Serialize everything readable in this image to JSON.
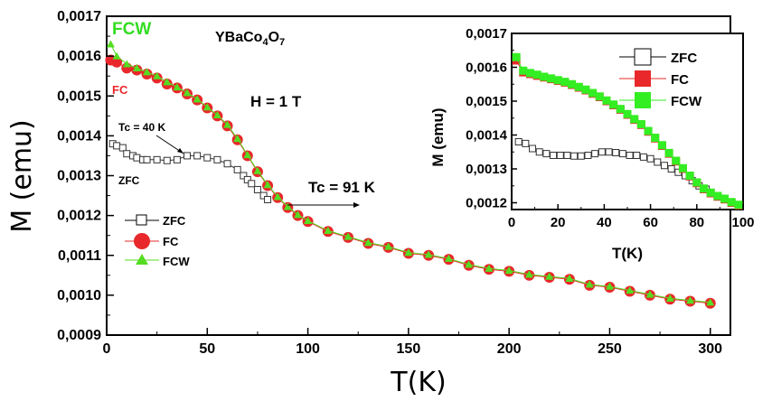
{
  "chart_data": [
    {
      "type": "scatter",
      "title": "YBaCo4O7",
      "title_parts": {
        "base": "YBaCo",
        "sub1": "4",
        "mid": "O",
        "sub2": "7"
      },
      "xlabel": "T(K)",
      "ylabel": "M (emu)",
      "xlim": [
        0,
        310
      ],
      "ylim": [
        0.0009,
        0.0017
      ],
      "xticks": [
        0,
        50,
        100,
        150,
        200,
        250,
        300
      ],
      "xtick_labels": [
        "0",
        "50",
        "100",
        "150",
        "200",
        "250",
        "300"
      ],
      "yticks": [
        0.0009,
        0.001,
        0.0011,
        0.0012,
        0.0013,
        0.0014,
        0.0015,
        0.0016,
        0.0017
      ],
      "ytick_labels": [
        "0,0009",
        "0,0010",
        "0,0011",
        "0,0012",
        "0,0013",
        "0,0014",
        "0,0015",
        "0,0016",
        "0,0017"
      ],
      "legend": [
        "ZFC",
        "FC",
        "FCW"
      ],
      "annotations": {
        "field": "H = 1 T",
        "tc_low": "Tc = 40 K",
        "tc_high": "Tc = 91 K",
        "zfc_label": "ZFC",
        "fc_label": "FC",
        "fcw_label": "FCW"
      },
      "colors": {
        "zfc": "#333333",
        "fc": "#e8282a",
        "fcw": "#55dd22"
      },
      "series": [
        {
          "name": "ZFC",
          "x": [
            3,
            5,
            8,
            10,
            13,
            15,
            18,
            20,
            25,
            30,
            35,
            40,
            45,
            50,
            55,
            60,
            65,
            68,
            70,
            72,
            75,
            78,
            80
          ],
          "y": [
            0.00138,
            0.001375,
            0.00137,
            0.001355,
            0.00135,
            0.001345,
            0.00134,
            0.00134,
            0.00134,
            0.001338,
            0.00134,
            0.00135,
            0.00135,
            0.001345,
            0.00134,
            0.00133,
            0.001315,
            0.0013,
            0.00129,
            0.00128,
            0.001265,
            0.00125,
            0.00124
          ]
        },
        {
          "name": "FC",
          "x": [
            2,
            5,
            10,
            15,
            20,
            25,
            30,
            35,
            40,
            45,
            50,
            55,
            60,
            65,
            70,
            75,
            80,
            85,
            90,
            95,
            100,
            110,
            120,
            130,
            140,
            150,
            160,
            170,
            180,
            190,
            200,
            210,
            220,
            230,
            240,
            250,
            260,
            270,
            280,
            290,
            300
          ],
          "y": [
            0.00159,
            0.001585,
            0.00157,
            0.001565,
            0.001555,
            0.001545,
            0.00153,
            0.00152,
            0.001505,
            0.00149,
            0.00147,
            0.00145,
            0.001425,
            0.00139,
            0.00135,
            0.00131,
            0.001275,
            0.001245,
            0.00122,
            0.0012,
            0.001185,
            0.00116,
            0.001145,
            0.00113,
            0.00112,
            0.001105,
            0.0011,
            0.00109,
            0.001075,
            0.001065,
            0.00106,
            0.00105,
            0.001045,
            0.00104,
            0.001025,
            0.00102,
            0.00101,
            0.001,
            0.00099,
            0.000985,
            0.00098
          ]
        },
        {
          "name": "FCW",
          "x": [
            2,
            5,
            10,
            15,
            20,
            25,
            30,
            35,
            40,
            45,
            50,
            55,
            60,
            65,
            70,
            75,
            80,
            85,
            90,
            95,
            100,
            110,
            120,
            130,
            140,
            150,
            160,
            170,
            180,
            190,
            200,
            210,
            220,
            230,
            240,
            250,
            260,
            270,
            280,
            290,
            300
          ],
          "y": [
            0.00163,
            0.0016,
            0.00158,
            0.00157,
            0.00156,
            0.00155,
            0.001535,
            0.001522,
            0.001508,
            0.001492,
            0.001472,
            0.001452,
            0.001428,
            0.001393,
            0.001352,
            0.001312,
            0.001277,
            0.001247,
            0.001222,
            0.001202,
            0.001187,
            0.001162,
            0.001147,
            0.001132,
            0.001122,
            0.001107,
            0.001102,
            0.001092,
            0.001077,
            0.001067,
            0.001062,
            0.001052,
            0.001047,
            0.001042,
            0.001027,
            0.001022,
            0.001012,
            0.001002,
            0.000992,
            0.000987,
            0.000982
          ]
        }
      ]
    },
    {
      "type": "scatter",
      "title": "",
      "xlabel": "T(K)",
      "ylabel": "M (emu)",
      "xlim": [
        0,
        100
      ],
      "ylim": [
        0.00118,
        0.0017
      ],
      "xticks": [
        0,
        20,
        40,
        60,
        80,
        100
      ],
      "xtick_labels": [
        "0",
        "20",
        "40",
        "60",
        "80",
        "100"
      ],
      "yticks": [
        0.0012,
        0.0013,
        0.0014,
        0.0015,
        0.0016,
        0.0017
      ],
      "ytick_labels": [
        "0,0012",
        "0,0013",
        "0,0014",
        "0,0015",
        "0,0016",
        "0,0017"
      ],
      "legend": [
        "ZFC",
        "FC",
        "FCW"
      ],
      "colors": {
        "zfc": "#333333",
        "fc": "#e8282a",
        "fcw": "#33ee22"
      },
      "series": [
        {
          "name": "ZFC",
          "x": [
            3,
            6,
            9,
            12,
            15,
            18,
            21,
            24,
            27,
            30,
            33,
            36,
            39,
            42,
            45,
            48,
            51,
            54,
            57,
            60,
            63,
            66,
            69,
            72,
            75,
            78,
            81,
            84
          ],
          "y": [
            0.00138,
            0.001375,
            0.00136,
            0.00135,
            0.001345,
            0.00134,
            0.00134,
            0.00134,
            0.001338,
            0.001338,
            0.00134,
            0.001345,
            0.00135,
            0.00135,
            0.001348,
            0.001345,
            0.00134,
            0.00134,
            0.001335,
            0.00133,
            0.00132,
            0.00131,
            0.0013,
            0.00129,
            0.00128,
            0.001265,
            0.00125,
            0.00124
          ]
        },
        {
          "name": "FC",
          "x": [
            2,
            5,
            8,
            11,
            14,
            17,
            20,
            23,
            26,
            29,
            32,
            35,
            38,
            41,
            44,
            47,
            50,
            53,
            56,
            59,
            62,
            65,
            68,
            71,
            74,
            77,
            80,
            83,
            86,
            89,
            92,
            95,
            98
          ],
          "y": [
            0.00162,
            0.001585,
            0.00158,
            0.001575,
            0.00157,
            0.001565,
            0.00156,
            0.001555,
            0.001548,
            0.00154,
            0.001532,
            0.001522,
            0.001512,
            0.0015,
            0.001488,
            0.001475,
            0.00146,
            0.001445,
            0.00143,
            0.00141,
            0.00139,
            0.001368,
            0.001345,
            0.001322,
            0.0013,
            0.001278,
            0.001258,
            0.00124,
            0.001228,
            0.001218,
            0.00121,
            0.0012,
            0.001192
          ]
        },
        {
          "name": "FCW",
          "x": [
            2,
            5,
            8,
            11,
            14,
            17,
            20,
            23,
            26,
            29,
            32,
            35,
            38,
            41,
            44,
            47,
            50,
            53,
            56,
            59,
            62,
            65,
            68,
            71,
            74,
            77,
            80,
            83,
            86,
            89,
            92,
            95,
            98
          ],
          "y": [
            0.00163,
            0.00159,
            0.001583,
            0.001578,
            0.001572,
            0.001567,
            0.001562,
            0.001557,
            0.00155,
            0.001542,
            0.001534,
            0.001524,
            0.001514,
            0.001502,
            0.00149,
            0.001477,
            0.001462,
            0.001447,
            0.001432,
            0.001412,
            0.001392,
            0.00137,
            0.001347,
            0.001324,
            0.001302,
            0.00128,
            0.00126,
            0.001242,
            0.00123,
            0.00122,
            0.001212,
            0.001202,
            0.001194
          ]
        }
      ]
    }
  ]
}
